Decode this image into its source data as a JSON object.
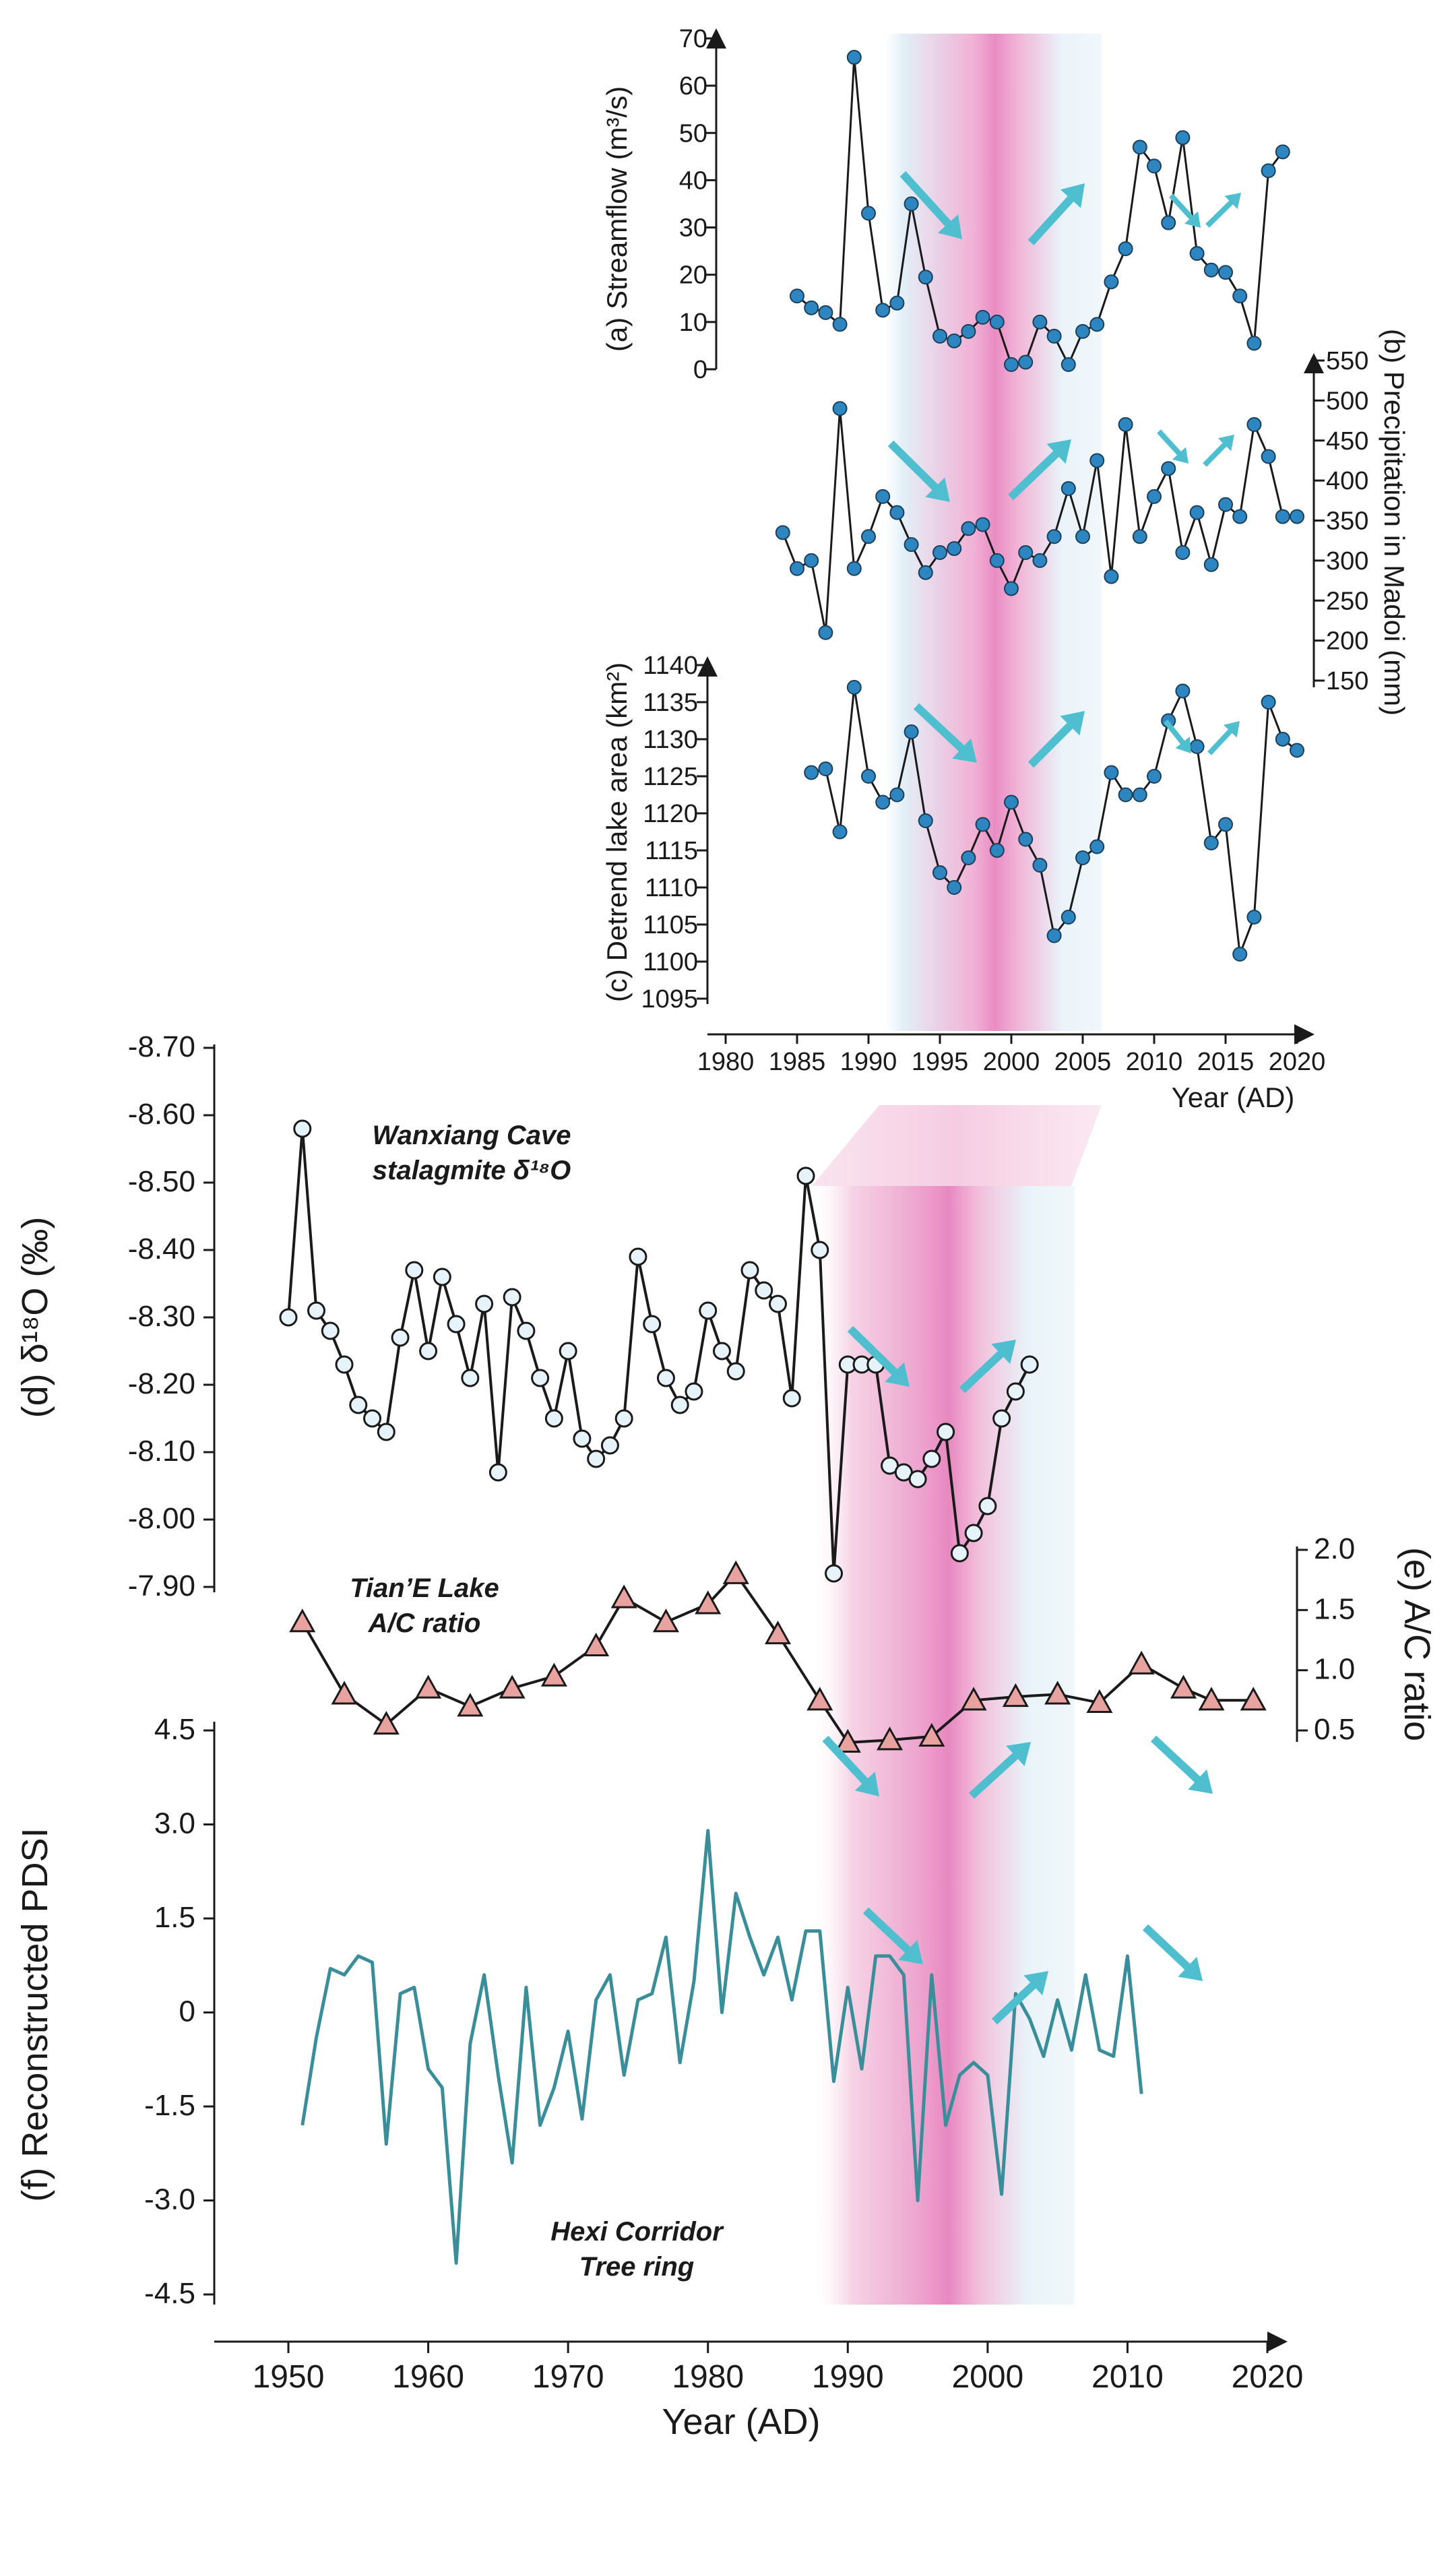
{
  "colors": {
    "axis": "#1a1a1a",
    "line": "#1a1a1a",
    "dot_fill": "#2e86c1",
    "dot_stroke": "#1c3f5a",
    "open_fill": "#e6f3fb",
    "triangle_fill": "#e8a3a0",
    "pdsi_line": "#3a8e9a",
    "arrow": "#4fbfd0",
    "band_pink": "#e97fbd",
    "band_blue": "#cfe7f3"
  },
  "chart_data": [
    {
      "id": "a",
      "type": "line",
      "title": "",
      "ylabel": "(a) Streamflow (m³/s)",
      "yticks": [
        0,
        10,
        20,
        30,
        40,
        50,
        60,
        70
      ],
      "ylim": [
        0,
        70
      ],
      "x": [
        1985,
        1986,
        1987,
        1988,
        1989,
        1990,
        1991,
        1992,
        1993,
        1994,
        1995,
        1996,
        1997,
        1998,
        1999,
        2000,
        2001,
        2002,
        2003,
        2004,
        2005,
        2006,
        2007,
        2008,
        2009,
        2010,
        2011,
        2012,
        2013,
        2014,
        2015,
        2016,
        2017,
        2018,
        2019
      ],
      "values": [
        15.5,
        13,
        12,
        9.5,
        66,
        33,
        12.5,
        14,
        35,
        19.5,
        7,
        6,
        8,
        11,
        10,
        1,
        1.5,
        10,
        7,
        1,
        8,
        9.5,
        18.5,
        25.5,
        47,
        43,
        31,
        49,
        24.5,
        21,
        20.5,
        15.5,
        5.5,
        42,
        46
      ]
    },
    {
      "id": "b",
      "type": "line",
      "ylabel": "(b) Precipitation in Madoi (mm)",
      "yticks": [
        150,
        200,
        250,
        300,
        350,
        400,
        450,
        500,
        550
      ],
      "ylim": [
        150,
        550
      ],
      "x": [
        1984,
        1985,
        1986,
        1987,
        1988,
        1989,
        1990,
        1991,
        1992,
        1993,
        1994,
        1995,
        1996,
        1997,
        1998,
        1999,
        2000,
        2001,
        2002,
        2003,
        2004,
        2005,
        2006,
        2007,
        2008,
        2009,
        2010,
        2011,
        2012,
        2013,
        2014,
        2015,
        2016,
        2017,
        2018,
        2019,
        2020
      ],
      "values": [
        335,
        290,
        300,
        210,
        490,
        290,
        330,
        380,
        360,
        320,
        285,
        310,
        315,
        340,
        345,
        300,
        265,
        310,
        300,
        330,
        390,
        330,
        425,
        280,
        470,
        330,
        380,
        415,
        310,
        360,
        295,
        370,
        355,
        470,
        430,
        355,
        355
      ]
    },
    {
      "id": "c",
      "type": "line",
      "ylabel": "(c) Detrend lake area (km²)",
      "yticks": [
        1095,
        1100,
        1105,
        1110,
        1115,
        1120,
        1125,
        1130,
        1135,
        1140
      ],
      "ylim": [
        1095,
        1140
      ],
      "xlabel": "Year (AD)",
      "xticks": [
        1980,
        1985,
        1990,
        1995,
        2000,
        2005,
        2010,
        2015,
        2020
      ],
      "x": [
        1986,
        1987,
        1988,
        1989,
        1990,
        1991,
        1992,
        1993,
        1994,
        1995,
        1996,
        1997,
        1998,
        1999,
        2000,
        2001,
        2002,
        2003,
        2004,
        2005,
        2006,
        2007,
        2008,
        2009,
        2010,
        2011,
        2012,
        2013,
        2014,
        2015,
        2016,
        2017,
        2018,
        2019,
        2020
      ],
      "values": [
        1125.5,
        1126,
        1117.5,
        1137,
        1125,
        1121.5,
        1122.5,
        1131,
        1119,
        1112,
        1110,
        1114,
        1118.5,
        1115,
        1121.5,
        1116.5,
        1113,
        1103.5,
        1106,
        1114,
        1115.5,
        1125.5,
        1122.5,
        1122.5,
        1125,
        1132.5,
        1136.5,
        1129,
        1116,
        1118.5,
        1101,
        1106,
        1135,
        1130,
        1128.5
      ]
    },
    {
      "id": "d",
      "type": "line",
      "ylabel": "(d) δ¹⁸O (‰)",
      "annotation_line1": "Wanxiang Cave",
      "annotation_line2": "stalagmite δ¹⁸O",
      "ytick_labels": [
        "-8.70",
        "-8.60",
        "-8.50",
        "-8.40",
        "-8.30",
        "-8.20",
        "-8.10",
        "-8.00",
        "-7.90"
      ],
      "ylim": [
        -8.7,
        -7.9
      ],
      "y_inverted": true,
      "x": [
        1950,
        1951,
        1952,
        1953,
        1954,
        1955,
        1956,
        1957,
        1958,
        1959,
        1960,
        1961,
        1962,
        1963,
        1964,
        1965,
        1966,
        1967,
        1968,
        1969,
        1970,
        1971,
        1972,
        1973,
        1974,
        1975,
        1976,
        1977,
        1978,
        1979,
        1980,
        1981,
        1982,
        1983,
        1984,
        1985,
        1986,
        1987,
        1988,
        1989,
        1990,
        1991,
        1992,
        1993,
        1994,
        1995,
        1996,
        1997,
        1998,
        1999,
        2000,
        2001,
        2002,
        2003
      ],
      "values": [
        -8.3,
        -8.58,
        -8.31,
        -8.28,
        -8.23,
        -8.17,
        -8.15,
        -8.13,
        -8.27,
        -8.37,
        -8.25,
        -8.36,
        -8.29,
        -8.21,
        -8.32,
        -8.07,
        -8.33,
        -8.28,
        -8.21,
        -8.15,
        -8.25,
        -8.12,
        -8.09,
        -8.11,
        -8.15,
        -8.39,
        -8.29,
        -8.21,
        -8.17,
        -8.19,
        -8.31,
        -8.25,
        -8.22,
        -8.37,
        -8.34,
        -8.32,
        -8.18,
        -8.51,
        -8.4,
        -7.92,
        -8.23,
        -8.23,
        -8.23,
        -8.08,
        -8.07,
        -8.06,
        -8.09,
        -8.13,
        -7.95,
        -7.98,
        -8.02,
        -8.15,
        -8.19,
        -8.23
      ]
    },
    {
      "id": "e",
      "type": "line",
      "ylabel": "(e) A/C ratio",
      "annotation_line1": "Tian’E Lake",
      "annotation_line2": "A/C ratio",
      "ytick_labels": [
        "0.5",
        "1.0",
        "1.5",
        "2.0"
      ],
      "ylim": [
        0.5,
        2.0
      ],
      "x": [
        1951,
        1954,
        1957,
        1960,
        1963,
        1966,
        1969,
        1972,
        1974,
        1977,
        1980,
        1982,
        1985,
        1988,
        1990,
        1993,
        1996,
        1999,
        2002,
        2005,
        2008,
        2011,
        2014,
        2016,
        2019
      ],
      "values": [
        1.4,
        0.8,
        0.55,
        0.85,
        0.7,
        0.85,
        0.95,
        1.2,
        1.6,
        1.4,
        1.55,
        1.8,
        1.3,
        0.75,
        0.4,
        0.42,
        0.45,
        0.75,
        0.78,
        0.8,
        0.73,
        1.05,
        0.85,
        0.75,
        0.75
      ]
    },
    {
      "id": "f",
      "type": "line",
      "ylabel": "(f) Reconstructed PDSI",
      "annotation_line1": "Hexi Corridor",
      "annotation_line2": "Tree ring",
      "ytick_labels": [
        "-4.5",
        "-3.0",
        "-1.5",
        "0",
        "1.5",
        "3.0",
        "4.5"
      ],
      "ylim": [
        -4.5,
        4.5
      ],
      "xlabel": "Year (AD)",
      "xticks": [
        1950,
        1960,
        1970,
        1980,
        1990,
        2000,
        2010,
        2020
      ],
      "x": [
        1951,
        1952,
        1953,
        1954,
        1955,
        1956,
        1957,
        1958,
        1959,
        1960,
        1961,
        1962,
        1963,
        1964,
        1965,
        1966,
        1967,
        1968,
        1969,
        1970,
        1971,
        1972,
        1973,
        1974,
        1975,
        1976,
        1977,
        1978,
        1979,
        1980,
        1981,
        1982,
        1983,
        1984,
        1985,
        1986,
        1987,
        1988,
        1989,
        1990,
        1991,
        1992,
        1993,
        1994,
        1995,
        1996,
        1997,
        1998,
        1999,
        2000,
        2001,
        2002,
        2003,
        2004,
        2005,
        2006,
        2007,
        2008,
        2009,
        2010,
        2011
      ],
      "values": [
        -1.8,
        -0.4,
        0.7,
        0.6,
        0.9,
        0.8,
        -2.1,
        0.3,
        0.4,
        -0.9,
        -1.2,
        -4.0,
        -0.5,
        0.6,
        -1.0,
        -2.4,
        0.4,
        -1.8,
        -1.2,
        -0.3,
        -1.7,
        0.2,
        0.6,
        -1.0,
        0.2,
        0.3,
        1.2,
        -0.8,
        0.5,
        2.9,
        0.0,
        1.9,
        1.2,
        0.6,
        1.2,
        0.2,
        1.3,
        1.3,
        -1.1,
        0.4,
        -0.9,
        0.9,
        0.9,
        0.6,
        -3.0,
        0.6,
        -1.8,
        -1.0,
        -0.8,
        -1.0,
        -2.9,
        0.3,
        -0.1,
        -0.7,
        0.2,
        -0.6,
        0.6,
        -0.6,
        -0.7,
        0.9,
        -1.3
      ]
    }
  ]
}
